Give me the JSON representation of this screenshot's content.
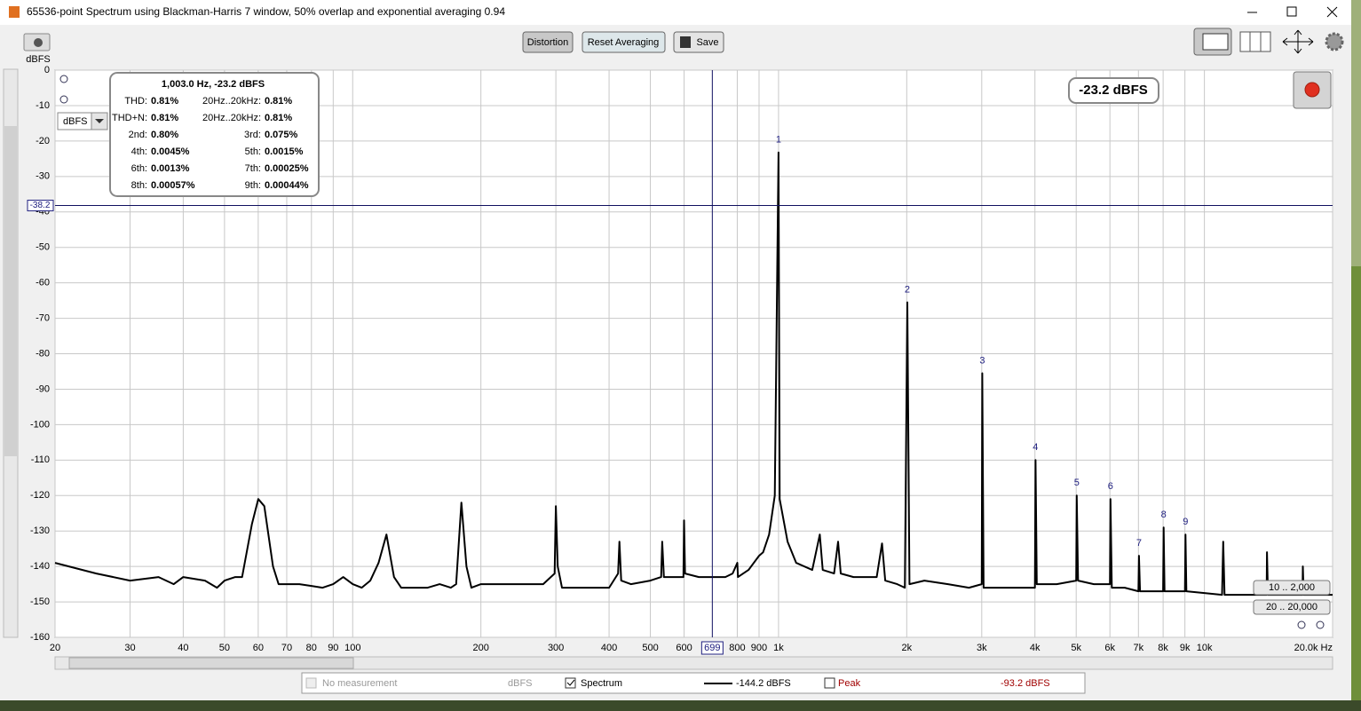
{
  "window_title": "65536-point Spectrum using Blackman-Harris 7 window, 50% overlap and exponential averaging 0.94",
  "toolbar": {
    "buttons": [
      "Distortion",
      "Reset Averaging",
      "Save"
    ]
  },
  "unit_selector": "dBFS",
  "readout": "-23.2 dBFS",
  "range_buttons": [
    "10 .. 2,000",
    "20 .. 20,000"
  ],
  "chart_data": {
    "type": "line",
    "y_label": "dBFS",
    "log_x": true,
    "grid": true,
    "xlim": [
      20,
      20000
    ],
    "ylim": [
      -160,
      0
    ],
    "xticks": [
      20,
      30,
      40,
      50,
      60,
      70,
      80,
      90,
      100,
      200,
      300,
      400,
      500,
      600,
      800,
      900,
      {
        "value": 1000,
        "label": "1k"
      },
      {
        "value": 2000,
        "label": "2k"
      },
      {
        "value": 3000,
        "label": "3k"
      },
      {
        "value": 4000,
        "label": "4k"
      },
      {
        "value": 5000,
        "label": "5k"
      },
      {
        "value": 6000,
        "label": "6k"
      },
      {
        "value": 7000,
        "label": "7k"
      },
      {
        "value": 8000,
        "label": "8k"
      },
      {
        "value": 9000,
        "label": "9k"
      },
      {
        "value": 10000,
        "label": "10k"
      },
      {
        "value": 20000,
        "label": "20.0k Hz"
      }
    ],
    "yticks": [
      0,
      -10,
      -20,
      -30,
      -40,
      -50,
      -60,
      -70,
      -80,
      -90,
      -100,
      -110,
      -120,
      -130,
      -140,
      -150,
      -160
    ],
    "x": [
      20,
      25,
      30,
      35,
      38,
      40,
      45,
      48,
      50,
      53,
      55,
      58,
      60,
      62,
      65,
      67,
      70,
      75,
      80,
      85,
      90,
      95,
      100,
      105,
      110,
      115,
      120,
      125,
      130,
      140,
      150,
      160,
      170,
      175,
      180,
      185,
      190,
      200,
      220,
      250,
      280,
      298,
      300,
      303,
      310,
      350,
      400,
      420,
      423,
      427,
      450,
      500,
      530,
      533,
      538,
      580,
      598,
      600,
      603,
      650,
      700,
      750,
      780,
      800,
      803,
      850,
      900,
      920,
      950,
      980,
      1000,
      1006,
      1050,
      1100,
      1200,
      1250,
      1270,
      1350,
      1380,
      1400,
      1500,
      1600,
      1700,
      1750,
      1780,
      1900,
      1980,
      2006,
      2030,
      2200,
      2500,
      2800,
      3000,
      3009,
      3030,
      3500,
      4000,
      4012,
      4040,
      4500,
      5000,
      5015,
      5050,
      5500,
      6000,
      6018,
      6060,
      6500,
      7000,
      7021,
      7060,
      7500,
      8000,
      8024,
      8060,
      8500,
      9000,
      9027,
      9070,
      10000,
      11000,
      11070,
      11150,
      12000,
      13000,
      14000,
      14030,
      14100,
      15000,
      16000,
      17000,
      17030,
      17100,
      20000
    ],
    "series": [
      {
        "name": "Spectrum",
        "color": "#000000",
        "values": [
          -139,
          -142,
          -144,
          -143,
          -145,
          -143,
          -144,
          -146,
          -144,
          -143,
          -143,
          -128,
          -121,
          -123,
          -140,
          -145,
          -145,
          -145,
          -145.5,
          -146,
          -145,
          -143,
          -145,
          -146,
          -144,
          -139,
          -131,
          -143,
          -146,
          -146,
          -146,
          -145,
          -146,
          -145,
          -122,
          -140,
          -146,
          -145,
          -145,
          -145,
          -145,
          -142,
          -123,
          -140,
          -146,
          -146,
          -146,
          -142,
          -133,
          -144,
          -145,
          -144,
          -143,
          -133,
          -143,
          -143,
          -143,
          -127,
          -142,
          -143,
          -143,
          -143,
          -142,
          -139,
          -143,
          -141,
          -137,
          -136,
          -131,
          -120,
          -23.2,
          -121,
          -133,
          -139,
          -141,
          -131,
          -141,
          -142,
          -133,
          -142,
          -143,
          -143,
          -143,
          -133.5,
          -144,
          -145,
          -146,
          -65.5,
          -145,
          -144,
          -145,
          -146,
          -145,
          -85.5,
          -146,
          -146,
          -146,
          -110,
          -145,
          -145,
          -144,
          -120,
          -144,
          -145,
          -145,
          -121,
          -146,
          -146,
          -147,
          -137,
          -147,
          -147,
          -147,
          -129,
          -147,
          -147,
          -147,
          -131,
          -147,
          -147.5,
          -148,
          -133,
          -148,
          -148,
          -148,
          -148,
          -136,
          -148,
          -148,
          -148,
          -148,
          -140,
          -148,
          -148
        ]
      }
    ],
    "harmonics": [
      {
        "text": "1",
        "x": 1000,
        "y": -23.2
      },
      {
        "text": "2",
        "x": 2006,
        "y": -65.5
      },
      {
        "text": "3",
        "x": 3009,
        "y": -85.5
      },
      {
        "text": "4",
        "x": 4012,
        "y": -110
      },
      {
        "text": "5",
        "x": 5015,
        "y": -120
      },
      {
        "text": "6",
        "x": 6018,
        "y": -121
      },
      {
        "text": "7",
        "x": 7021,
        "y": -137
      },
      {
        "text": "8",
        "x": 8024,
        "y": -129
      },
      {
        "text": "9",
        "x": 9027,
        "y": -131
      }
    ],
    "cursor": {
      "x": 699,
      "y": -38.2
    }
  },
  "distortion": {
    "header": "1,003.0 Hz, -23.2 dBFS",
    "rows": [
      [
        "THD:",
        "0.81%",
        "20Hz..20kHz:",
        "0.81%"
      ],
      [
        "THD+N:",
        "0.81%",
        "20Hz..20kHz:",
        "0.81%"
      ],
      [
        "2nd:",
        "0.80%",
        "3rd:",
        "0.075%"
      ],
      [
        "4th:",
        "0.0045%",
        "5th:",
        "0.0015%"
      ],
      [
        "6th:",
        "0.0013%",
        "7th:",
        "0.00025%"
      ],
      [
        "8th:",
        "0.00057%",
        "9th:",
        "0.00044%"
      ]
    ]
  },
  "legend": {
    "items": [
      {
        "name": "No measurement",
        "unit": "dBFS"
      },
      {
        "name": "Spectrum",
        "value": "-144.2 dBFS"
      },
      {
        "name": "Peak",
        "value": "-93.2 dBFS"
      }
    ]
  }
}
